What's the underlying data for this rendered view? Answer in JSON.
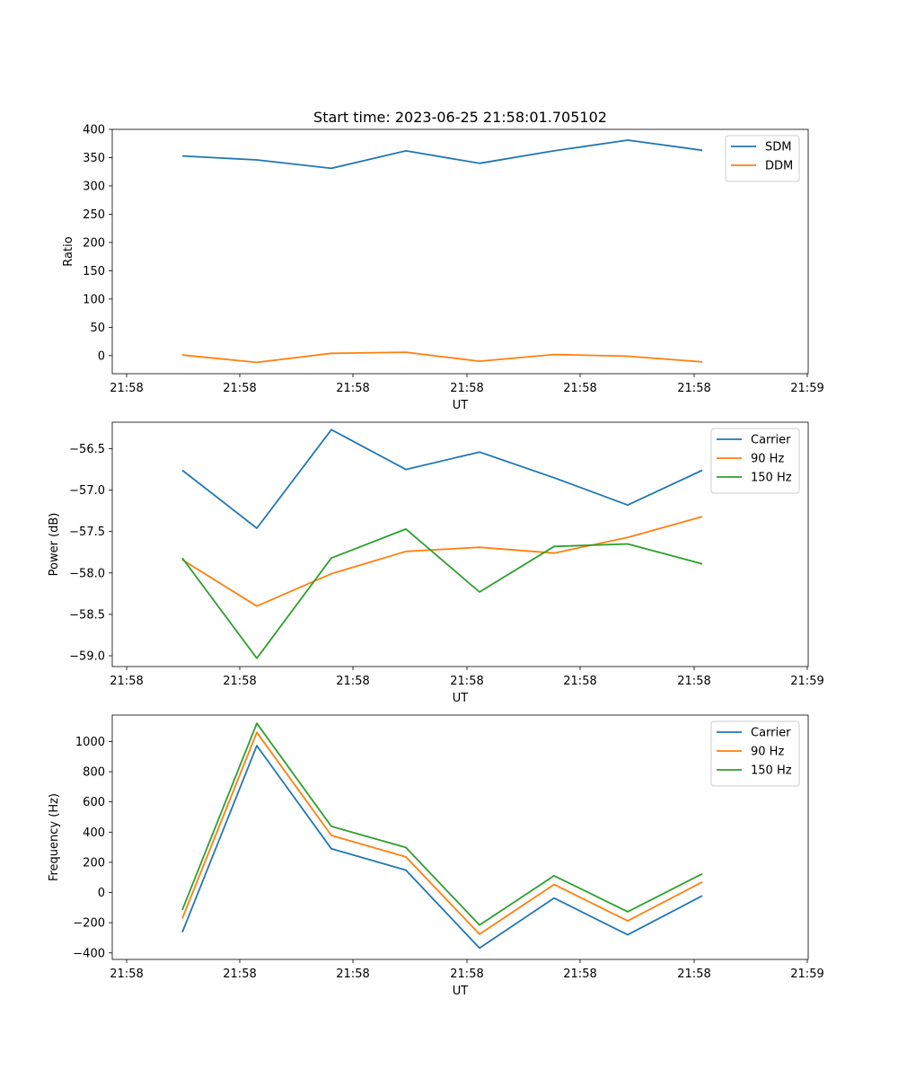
{
  "figure": {
    "title": "Start time: 2023-06-25 21:58:01.705102"
  },
  "chart_data": [
    {
      "type": "line",
      "title": "Start time: 2023-06-25 21:58:01.705102",
      "xlabel": "UT",
      "ylabel": "Ratio",
      "x_tick_labels": [
        "21:58",
        "21:58",
        "21:58",
        "21:58",
        "21:58",
        "21:58",
        "21:59"
      ],
      "y_ticks": [
        0,
        50,
        100,
        150,
        200,
        250,
        300,
        350,
        400
      ],
      "ylim": [
        -32,
        400
      ],
      "grid": false,
      "legend_position": "top-right",
      "series": [
        {
          "name": "SDM",
          "color": "#1f77b4",
          "values": [
            353,
            346,
            331,
            362,
            340,
            362,
            381,
            363
          ]
        },
        {
          "name": "DDM",
          "color": "#ff7f0e",
          "values": [
            1,
            -12,
            4,
            6,
            -10,
            2,
            -1,
            -11
          ]
        }
      ]
    },
    {
      "type": "line",
      "title": "",
      "xlabel": "UT",
      "ylabel": "Power (dB)",
      "x_tick_labels": [
        "21:58",
        "21:58",
        "21:58",
        "21:58",
        "21:58",
        "21:58",
        "21:59"
      ],
      "y_ticks": [
        -59.0,
        -58.5,
        -58.0,
        -57.5,
        -57.0,
        -56.5
      ],
      "y_tick_labels": [
        "−59.0",
        "−58.5",
        "−58.0",
        "−57.5",
        "−57.0",
        "−56.5"
      ],
      "ylim": [
        -59.13,
        -56.18
      ],
      "grid": false,
      "legend_position": "top-right",
      "series": [
        {
          "name": "Carrier",
          "color": "#1f77b4",
          "values": [
            -56.76,
            -57.46,
            -56.27,
            -56.75,
            -56.54,
            -56.85,
            -57.18,
            -56.76
          ]
        },
        {
          "name": "90 Hz",
          "color": "#ff7f0e",
          "values": [
            -57.84,
            -58.4,
            -58.01,
            -57.74,
            -57.69,
            -57.76,
            -57.57,
            -57.32
          ]
        },
        {
          "name": "150 Hz",
          "color": "#2ca02c",
          "values": [
            -57.82,
            -59.03,
            -57.82,
            -57.47,
            -58.23,
            -57.68,
            -57.65,
            -57.89
          ]
        }
      ]
    },
    {
      "type": "line",
      "title": "",
      "xlabel": "UT",
      "ylabel": "Frequency (Hz)",
      "x_tick_labels": [
        "21:58",
        "21:58",
        "21:58",
        "21:58",
        "21:58",
        "21:58",
        "21:59"
      ],
      "y_ticks": [
        -400,
        -200,
        0,
        200,
        400,
        600,
        800,
        1000
      ],
      "y_tick_labels": [
        "−400",
        "−200",
        "0",
        "200",
        "400",
        "600",
        "800",
        "1000"
      ],
      "ylim": [
        -443,
        1175
      ],
      "grid": false,
      "legend_position": "top-right",
      "series": [
        {
          "name": "Carrier",
          "color": "#1f77b4",
          "values": [
            -263,
            972,
            290,
            148,
            -368,
            -37,
            -280,
            -22
          ]
        },
        {
          "name": "90 Hz",
          "color": "#ff7f0e",
          "values": [
            -172,
            1060,
            378,
            236,
            -276,
            53,
            -188,
            70
          ]
        },
        {
          "name": "150 Hz",
          "color": "#2ca02c",
          "values": [
            -115,
            1120,
            438,
            298,
            -215,
            111,
            -127,
            124
          ]
        }
      ]
    }
  ]
}
